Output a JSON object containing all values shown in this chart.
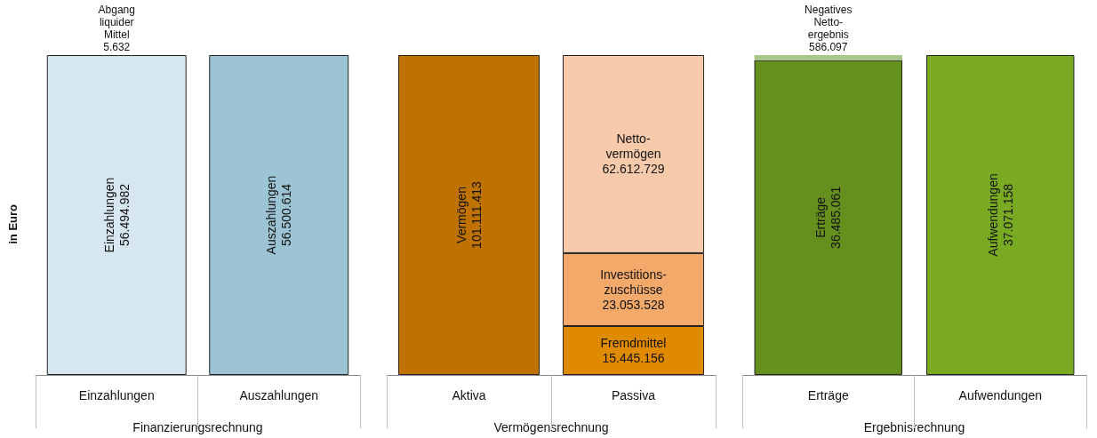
{
  "chart_data": [
    {
      "type": "bar",
      "stacked": true,
      "xlabel": "Finanzierungsrechnung",
      "ylabel": "in Euro",
      "categories": [
        "Einzahlungen",
        "Auszahlungen"
      ],
      "series": [
        {
          "name": "Einzahlungen",
          "color": "#d7e7ef",
          "values": [
            56494982,
            null
          ],
          "value_labels": [
            "56.494.982",
            null
          ]
        },
        {
          "name": "Abgang liquider Mittel",
          "color": "#e9f2f6",
          "values": [
            5632,
            null
          ],
          "value_labels": [
            "5.632",
            null
          ]
        },
        {
          "name": "Auszahlungen",
          "color": "#9cc4d4",
          "values": [
            null,
            56500614
          ],
          "value_labels": [
            null,
            "56.500.614"
          ]
        }
      ]
    },
    {
      "type": "bar",
      "stacked": true,
      "xlabel": "Vermögensrechnung",
      "categories": [
        "Aktiva",
        "Passiva"
      ],
      "series": [
        {
          "name": "Vermögen",
          "color": "#bf7200",
          "values": [
            101111413,
            null
          ],
          "value_labels": [
            "101.111.413",
            null
          ]
        },
        {
          "name": "Fremdmittel",
          "color": "#e08a00",
          "values": [
            null,
            15445156
          ],
          "value_labels": [
            null,
            "15.445.156"
          ]
        },
        {
          "name": "Investitions-zuschüsse",
          "color": "#f2a96a",
          "values": [
            null,
            23053528
          ],
          "value_labels": [
            null,
            "23.053.528"
          ]
        },
        {
          "name": "Netto-vermögen",
          "color": "#f6caab",
          "values": [
            null,
            62612729
          ],
          "value_labels": [
            null,
            "62.612.729"
          ]
        }
      ]
    },
    {
      "type": "bar",
      "stacked": true,
      "xlabel": "Ergebnisrechnung",
      "categories": [
        "Erträge",
        "Aufwendungen"
      ],
      "series": [
        {
          "name": "Erträge",
          "color": "#66901e",
          "values": [
            36485061,
            null
          ],
          "value_labels": [
            "36.485.061",
            null
          ]
        },
        {
          "name": "Negatives Netto-ergebnis",
          "color": "#aac78a",
          "values": [
            586097,
            null
          ],
          "value_labels": [
            "586.097",
            null
          ]
        },
        {
          "name": "Aufwendungen",
          "color": "#7aaa22",
          "values": [
            null,
            37071158
          ],
          "value_labels": [
            null,
            "37.071.158"
          ]
        }
      ]
    }
  ]
}
